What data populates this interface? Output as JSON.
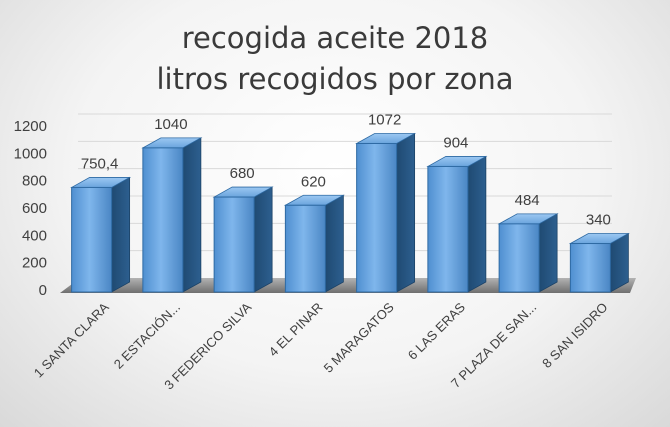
{
  "chart_data": {
    "type": "bar",
    "title": "recogida aceite 2018",
    "subtitle": "litros recogidos por zona",
    "categories": [
      "1 SANTA CLARA",
      "2 ESTACIÓN...",
      "3 FEDERICO SILVA",
      "4 EL PINAR",
      "5 MARAGATOS",
      "6 LAS ERAS",
      "7 PLAZA DE SAN...",
      "8 SAN ISIDRO"
    ],
    "values": [
      750.4,
      1040,
      680,
      620,
      1072,
      904,
      484,
      340
    ],
    "data_labels": [
      "750,4",
      "1040",
      "680",
      "620",
      "1072",
      "904",
      "484",
      "340"
    ],
    "ylim": [
      0,
      1200
    ],
    "yticks": [
      0,
      200,
      400,
      600,
      800,
      1000,
      1200
    ],
    "grid": true,
    "legend": "none",
    "style": "3d-column",
    "colors": {
      "bar": "#5b9bd5",
      "bar_side": "#2e5f8e",
      "floor": "#8c8c8c"
    }
  }
}
